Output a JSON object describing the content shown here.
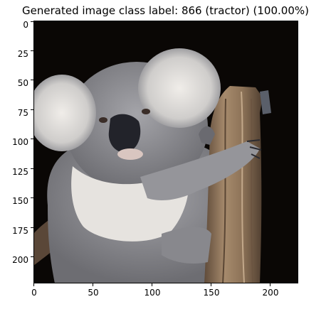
{
  "title": "Generated image class label: 866 (tractor) (100.00%)",
  "image": {
    "subject": "koala clinging to a tree stump",
    "pixel_extent": {
      "x": [
        0,
        223
      ],
      "y": [
        0,
        223
      ]
    }
  },
  "axes": {
    "x_ticks": [
      "0",
      "50",
      "100",
      "150",
      "200"
    ],
    "y_ticks": [
      "0",
      "25",
      "50",
      "75",
      "100",
      "125",
      "150",
      "175",
      "200"
    ]
  },
  "colors": {
    "background_dark": "#0a0705",
    "fur_gray": "#8d8d92",
    "fur_white": "#ece9e6",
    "nose": "#22232a",
    "wood": "#9a8062"
  }
}
